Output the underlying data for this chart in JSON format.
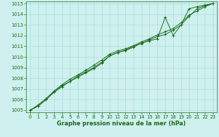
{
  "title": "Graphe pression niveau de la mer (hPa)",
  "xlim": [
    -0.5,
    23.5
  ],
  "ylim": [
    1004.8,
    1015.2
  ],
  "xticks": [
    0,
    1,
    2,
    3,
    4,
    5,
    6,
    7,
    8,
    9,
    10,
    11,
    12,
    13,
    14,
    15,
    16,
    17,
    18,
    19,
    20,
    21,
    22,
    23
  ],
  "yticks": [
    1005,
    1006,
    1007,
    1008,
    1009,
    1010,
    1011,
    1012,
    1013,
    1014,
    1015
  ],
  "bg_color": "#cef0ee",
  "line_color": "#1a6b1a",
  "marker": "+",
  "series": [
    [
      1005.0,
      1005.4,
      1006.0,
      1006.7,
      1007.3,
      1007.7,
      1008.1,
      1008.5,
      1008.9,
      1009.4,
      1010.1,
      1010.4,
      1010.6,
      1010.9,
      1011.3,
      1011.5,
      1011.7,
      1013.7,
      1012.0,
      1013.0,
      1014.5,
      1014.7,
      1014.85,
      1015.0
    ],
    [
      1005.0,
      1005.4,
      1006.0,
      1006.7,
      1007.2,
      1007.7,
      1008.2,
      1008.6,
      1009.0,
      1009.5,
      1010.1,
      1010.4,
      1010.65,
      1011.0,
      1011.25,
      1011.6,
      1011.9,
      1012.1,
      1012.5,
      1013.0,
      1013.8,
      1014.5,
      1014.8,
      1015.0
    ],
    [
      1005.0,
      1005.5,
      1006.1,
      1006.8,
      1007.4,
      1007.9,
      1008.3,
      1008.75,
      1009.2,
      1009.7,
      1010.25,
      1010.55,
      1010.75,
      1011.05,
      1011.4,
      1011.7,
      1012.05,
      1012.35,
      1012.65,
      1013.2,
      1013.9,
      1014.3,
      1014.7,
      1015.0
    ]
  ],
  "grid_color": "#a8dede",
  "tick_fontsize": 5.0,
  "label_fontsize": 6.0,
  "label_bold": true,
  "figsize": [
    3.2,
    2.0
  ],
  "dpi": 100
}
